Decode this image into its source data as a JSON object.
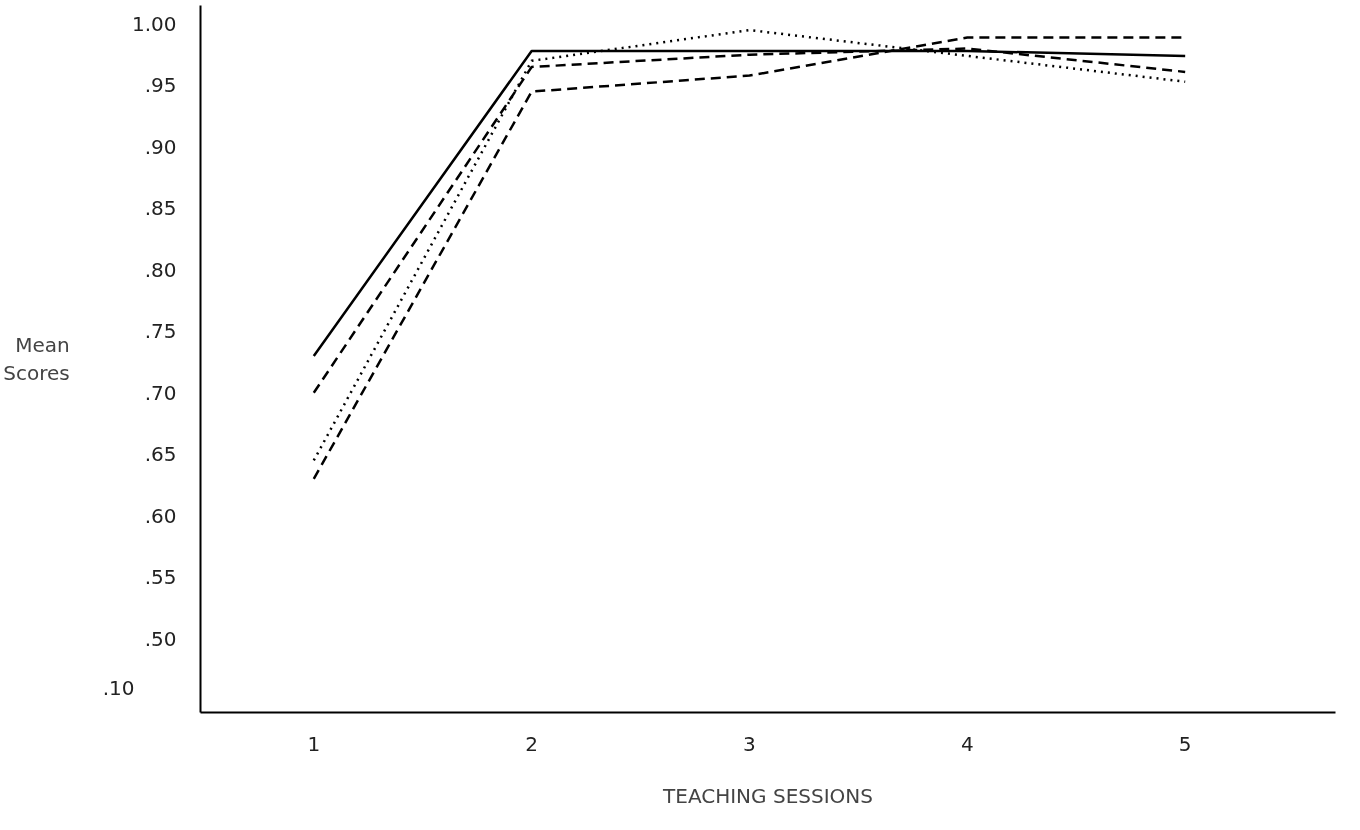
{
  "chart_data": {
    "type": "line",
    "xlabel": "TEACHING SESSIONS",
    "ylabel": "Mean Scores",
    "x": [
      1,
      2,
      3,
      4,
      5
    ],
    "series": [
      {
        "color": "#000000",
        "line_style": "solid",
        "values": [
          0.73,
          0.978,
          0.978,
          0.978,
          0.974
        ]
      },
      {
        "color": "#000000",
        "line_style": "dashed",
        "values": [
          0.7,
          0.965,
          0.975,
          0.98,
          0.961
        ]
      },
      {
        "color": "#000000",
        "line_style": "dotted",
        "values": [
          0.645,
          0.97,
          0.995,
          0.974,
          0.953
        ]
      },
      {
        "color": "#000000",
        "line_style": "dashed",
        "values": [
          0.63,
          0.945,
          0.958,
          0.989,
          0.989
        ]
      }
    ],
    "xlim": [
      0.48,
      5.69
    ],
    "ylim": [
      0.44,
      1.015
    ],
    "xticks": [
      1,
      2,
      3,
      4,
      5
    ],
    "annotations": [
      ".10"
    ],
    "yticks": [
      {
        "value": 0.5,
        "label": ".50"
      },
      {
        "value": 0.55,
        "label": ".55"
      },
      {
        "value": 0.6,
        "label": ".60"
      },
      {
        "value": 0.65,
        "label": ".65"
      },
      {
        "value": 0.7,
        "label": ".70"
      },
      {
        "value": 0.75,
        "label": ".75"
      },
      {
        "value": 0.8,
        "label": ".80"
      },
      {
        "value": 0.85,
        "label": ".85"
      },
      {
        "value": 0.9,
        "label": ".90"
      },
      {
        "value": 0.95,
        "label": ".95"
      },
      {
        "value": 1.0,
        "label": "1.00"
      }
    ],
    "grid": false,
    "marker": "none"
  }
}
